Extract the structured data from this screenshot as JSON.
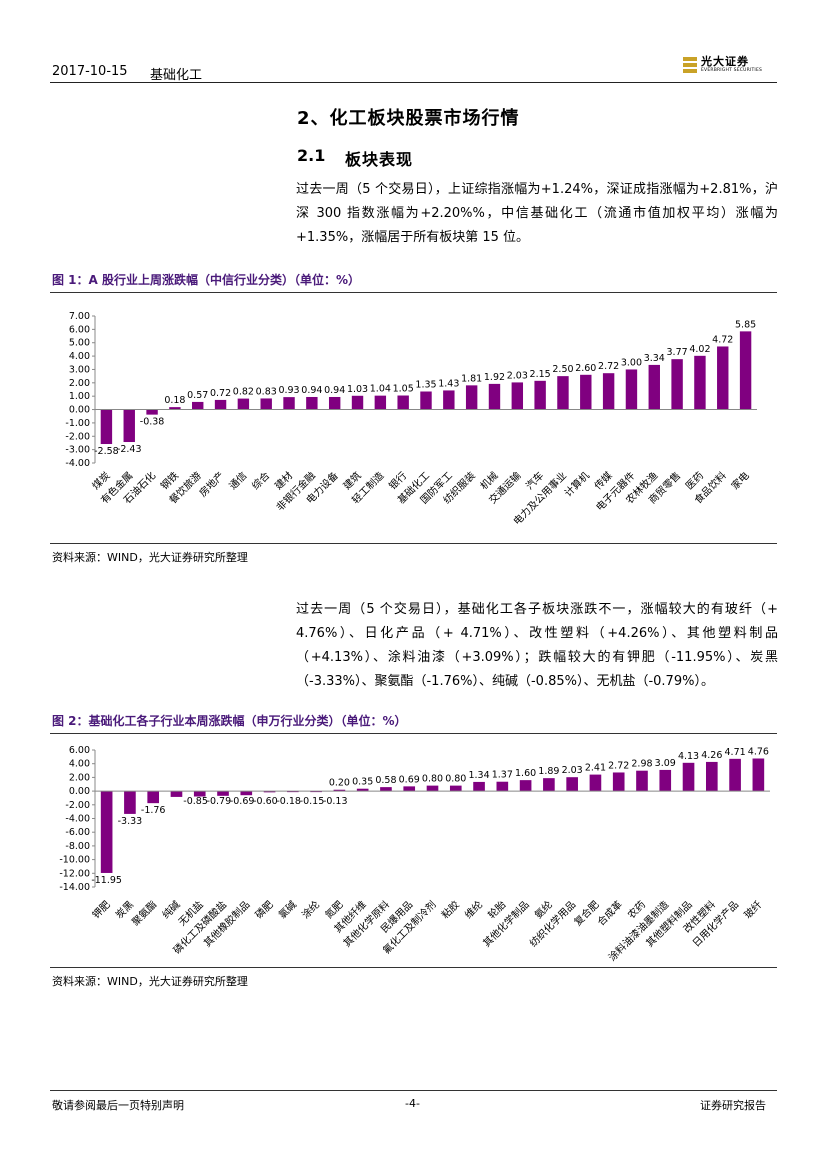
{
  "header": {
    "date": "2017-10-15",
    "sector": "基础化工",
    "logo_cn": "光大证券",
    "logo_en": "EVERBRIGHT SECURITIES"
  },
  "section": {
    "title": "2、化工板块股票市场行情",
    "sub_num": "2.1",
    "sub_title": "板块表现"
  },
  "paragraph1": "过去一周（5 个交易日），上证综指涨幅为+1.24%，深证成指涨幅为+2.81%，沪深 300 指数涨幅为+2.20%%，中信基础化工（流通市值加权平均）涨幅为+1.35%，涨幅居于所有板块第 15 位。",
  "paragraph2": "过去一周（5 个交易日），基础化工各子板块涨跌不一，涨幅较大的有玻纤（+ 4.76%）、日化产品（+ 4.71%）、改性塑料（+4.26%）、其他塑料制品（+4.13%）、涂料油漆（+3.09%）；跌幅较大的有钾肥（-11.95%）、炭黑（-3.33%）、聚氨酯（-1.76%）、纯碱（-0.85%）、无机盐（-0.79%）。",
  "figure1": {
    "title": "图 1：A 股行业上周涨跌幅（中信行业分类）（单位：%）",
    "source": "资料来源：WIND，光大证券研究所整理"
  },
  "figure2": {
    "title": "图 2：基础化工各子行业本周涨跌幅（申万行业分类）（单位：%）",
    "source": "资料来源：WIND，光大证券研究所整理"
  },
  "footer": {
    "left": "敬请参阅最后一页特别声明",
    "page": "-4-",
    "right": "证券研究报告"
  },
  "colors": {
    "bar": "#800080",
    "figure_title": "#4a1a7a"
  },
  "chart_data": [
    {
      "type": "bar",
      "categories": [
        "煤炭",
        "有色金属",
        "石油石化",
        "钢铁",
        "餐饮旅游",
        "房地产",
        "通信",
        "综合",
        "建材",
        "非银行金融",
        "电力设备",
        "建筑",
        "轻工制造",
        "银行",
        "基础化工",
        "国防军工",
        "纺织服装",
        "机械",
        "交通运输",
        "汽车",
        "电力及公用事业",
        "计算机",
        "传媒",
        "电子元器件",
        "农林牧渔",
        "商贸零售",
        "医药",
        "食品饮料",
        "家电"
      ],
      "values": [
        -2.58,
        -2.43,
        -0.38,
        0.18,
        0.57,
        0.72,
        0.82,
        0.83,
        0.93,
        0.94,
        0.94,
        1.03,
        1.04,
        1.05,
        1.35,
        1.43,
        1.81,
        1.92,
        2.03,
        2.15,
        2.5,
        2.6,
        2.72,
        3.0,
        3.34,
        3.77,
        4.02,
        4.72,
        5.85
      ],
      "labels": [
        "-2.58",
        "-2.43",
        "-0.38",
        "0.18",
        "0.57",
        "0.72",
        "0.82",
        "0.83",
        "0.93",
        "0.94",
        "0.94",
        "1.03",
        "1.04",
        "1.05",
        "1.35",
        "1.43",
        "1.81",
        "1.92",
        "2.03",
        "2.15",
        "2.50",
        "2.60",
        "2.72",
        "3.00",
        "3.34",
        "3.77",
        "4.02",
        "4.72",
        "5.85"
      ],
      "yticks": [
        "7.00",
        "6.00",
        "5.00",
        "4.00",
        "3.00",
        "2.00",
        "1.00",
        "0.00",
        "-1.00",
        "-2.00",
        "-3.00",
        "-4.00"
      ],
      "ylim": [
        -4,
        7
      ],
      "grid": false,
      "legend": false
    },
    {
      "type": "bar",
      "categories": [
        "钾肥",
        "炭黑",
        "聚氨酯",
        "纯碱",
        "无机盐",
        "磷化工及磷酸盐",
        "其他橡胶制品",
        "磷肥",
        "氯碱",
        "涂纶",
        "氮肥",
        "其他纤维",
        "其他化学原料",
        "民爆用品",
        "氟化工及制冷剂",
        "粘胶",
        "维纶",
        "轮胎",
        "其他化学制品",
        "氨纶",
        "纺织化学用品",
        "复合肥",
        "合成革",
        "农药",
        "涂料油漆油墨制造",
        "其他塑料制品",
        "改性塑料",
        "日用化学产品",
        "玻纤"
      ],
      "values": [
        -11.95,
        -3.33,
        -1.76,
        -0.85,
        -0.79,
        -0.69,
        -0.6,
        -0.18,
        -0.15,
        -0.13,
        0.2,
        0.35,
        0.58,
        0.69,
        0.8,
        0.8,
        1.34,
        1.37,
        1.6,
        1.89,
        2.03,
        2.41,
        2.72,
        2.98,
        3.09,
        4.13,
        4.26,
        4.71,
        4.76
      ],
      "labels": [
        "-11.95",
        "-3.33",
        "-1.76",
        "-0.85",
        "-0.79",
        "-0.69",
        "-0.60",
        "-0.18",
        "-0.15",
        "-0.13",
        "0.20",
        "0.35",
        "0.58",
        "0.69",
        "0.80",
        "0.80",
        "1.34",
        "1.37",
        "1.60",
        "1.89",
        "2.03",
        "2.41",
        "2.72",
        "2.98",
        "3.09",
        "4.13",
        "4.26",
        "4.71",
        "4.76"
      ],
      "yticks": [
        "6.00",
        "4.00",
        "2.00",
        "0.00",
        "-2.00",
        "-4.00",
        "-6.00",
        "-8.00",
        "-10.00",
        "-12.00",
        "-14.00"
      ],
      "ylim": [
        -14,
        6
      ],
      "grid": false,
      "legend": false
    }
  ]
}
